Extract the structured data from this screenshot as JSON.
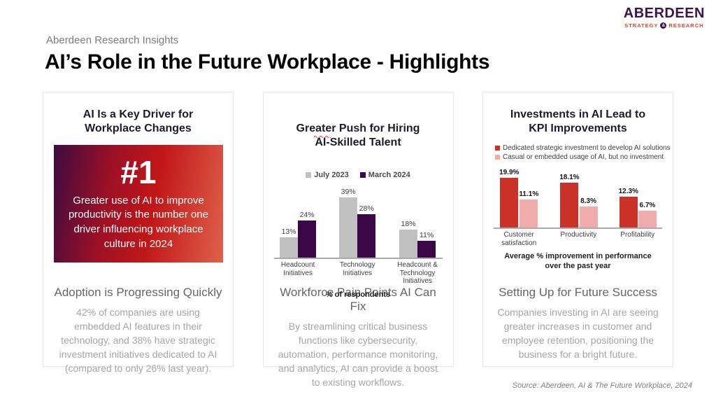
{
  "page": {
    "eyebrow": "Aberdeen Research Insights",
    "title": "AI’s Role in the Future Workplace - Highlights",
    "source": "Source: Aberdeen, AI & The Future Workplace, 2024"
  },
  "brand": {
    "name": "ABERDEEN",
    "tagline_left": "STRATEGY",
    "tagline_symbol": "&",
    "tagline_right": "RESEARCH",
    "wordmark_color": "#3d1152",
    "tagline_color": "#e8432d"
  },
  "cards": [
    {
      "heading": "AI Is a Key Driver for\nWorkplace Changes",
      "highlight": {
        "rank": "#1",
        "text": "Greater use of AI to improve productivity is the number one driver influencing workplace culture in 2024",
        "gradient_from": "#3c0b40",
        "gradient_to": "#e0614a"
      },
      "subheading": "Adoption is Progressing Quickly",
      "body": "42% of companies are using embedded AI features in their technology, and 38% have strategic investment initiatives dedicated to AI (compared to only 26% last year)."
    },
    {
      "heading": "Greater Push for Hiring\nAI-Skilled Talent",
      "subheading": "Workforce Pain Points AI Can Fix",
      "body": "By streamlining critical business functions like cybersecurity, automation, performance monitoring, and analytics, AI can provide a boost to existing workflows."
    },
    {
      "heading": "Investments in AI Lead to\nKPI Improvements",
      "subheading": "Setting Up for Future Success",
      "body": "Companies investing in AI are seeing greater increases in customer and employee retention, positioning the business for a bright future."
    }
  ],
  "chart_data": [
    {
      "type": "bar",
      "title": "Greater Push for Hiring AI-Skilled Talent",
      "categories": [
        "Headcount Initiatives",
        "Technology Initiatives",
        "Headcount &\nTechnology Initiatives"
      ],
      "series": [
        {
          "name": "July 2023",
          "color": "#c2c1c1",
          "values": [
            13,
            39,
            18
          ]
        },
        {
          "name": "March 2024",
          "color": "#3b0747",
          "values": [
            24,
            28,
            11
          ]
        }
      ],
      "value_suffix": "%",
      "xlabel": "% of respondents",
      "ylim": [
        0,
        39
      ],
      "grid": false,
      "legend_position": "top-center"
    },
    {
      "type": "bar",
      "title": "Investments in AI Lead to KPI Improvements",
      "categories": [
        "Customer\nsatisfaction",
        "Productivity",
        "Profitability"
      ],
      "series": [
        {
          "name": "Dedicated strategic investment to develop AI solutions",
          "color": "#cb3227",
          "values": [
            19.9,
            18.1,
            12.3
          ]
        },
        {
          "name": "Casual or embedded usage of AI, but no investment",
          "color": "#efacaa",
          "values": [
            11.1,
            8.3,
            6.7
          ]
        }
      ],
      "value_suffix": "%",
      "xlabel": "Average % improvement in performance\nover the past year",
      "ylim": [
        0,
        19.9
      ],
      "grid": false,
      "legend_position": "top-left"
    }
  ]
}
